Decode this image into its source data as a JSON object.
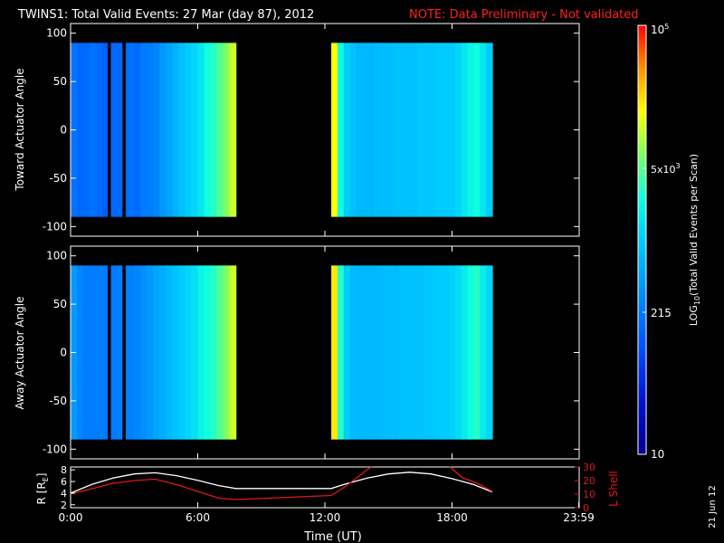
{
  "header": {
    "title": "TWINS1: Total Valid Events: 27 Mar (day  87), 2012",
    "note": "NOTE: Data Preliminary - Not validated"
  },
  "footer": {
    "xlabel": "Time (UT)",
    "date_stamp": "21 Jun 12"
  },
  "colorbar": {
    "label": "LOG10(Total Valid Events per Scan)",
    "label_main": "LOG",
    "label_sub": "10",
    "label_rest": "(Total Valid Events per Scan)",
    "tick_top": "10",
    "tick_top_exp": "5",
    "tick_5e3": "5x10",
    "tick_5e3_exp": "3",
    "tick_215": "215",
    "tick_10": "10"
  },
  "colors": {
    "background": "#000000",
    "axis": "#ffffff",
    "note": "#ff2020",
    "r_line": "#ffffff",
    "l_shell_line": "#e01818"
  },
  "chart_data": [
    {
      "type": "heatmap",
      "panel": "toward",
      "ylabel": "Toward Actuator Angle",
      "yticks": [
        "100",
        "50",
        "0",
        "-50",
        "-100"
      ],
      "ylim": [
        -110,
        110
      ],
      "xlim": [
        0,
        24
      ],
      "data_angle_range": [
        -90,
        90
      ],
      "scale": "log10",
      "value_range": [
        10,
        100000
      ],
      "blocks": [
        {
          "start_hr": 0.0,
          "end_hr": 7.8,
          "columns": [
            0.32,
            0.3,
            0.3,
            0.32,
            0.3,
            0.28,
            0.3,
            0.3,
            0.3,
            0.32,
            0.3,
            0.34,
            0.34,
            0.36,
            0.4,
            0.42,
            0.45,
            0.48,
            0.5,
            0.52,
            0.55,
            0.6,
            0.62,
            0.66,
            0.7,
            0.76
          ]
        },
        {
          "start_hr": 12.3,
          "end_hr": 19.9,
          "columns": [
            0.8,
            0.6,
            0.5,
            0.48,
            0.46,
            0.46,
            0.46,
            0.47,
            0.47,
            0.47,
            0.48,
            0.48,
            0.48,
            0.48,
            0.49,
            0.49,
            0.49,
            0.5,
            0.5,
            0.5,
            0.52,
            0.55,
            0.58,
            0.6,
            0.55,
            0.5
          ]
        }
      ],
      "gaps_hr": [
        [
          1.75,
          1.9
        ],
        [
          2.45,
          2.6
        ]
      ]
    },
    {
      "type": "heatmap",
      "panel": "away",
      "ylabel": "Away Actuator Angle",
      "yticks": [
        "100",
        "50",
        "0",
        "-50",
        "-100"
      ],
      "ylim": [
        -110,
        110
      ],
      "xlim": [
        0,
        24
      ],
      "data_angle_range": [
        -90,
        90
      ],
      "scale": "log10",
      "value_range": [
        10,
        100000
      ],
      "blocks": [
        {
          "start_hr": 0.0,
          "end_hr": 7.8,
          "columns": [
            0.4,
            0.36,
            0.34,
            0.34,
            0.34,
            0.34,
            0.34,
            0.34,
            0.34,
            0.35,
            0.36,
            0.38,
            0.4,
            0.42,
            0.44,
            0.46,
            0.48,
            0.5,
            0.52,
            0.54,
            0.58,
            0.6,
            0.62,
            0.66,
            0.7,
            0.76
          ]
        },
        {
          "start_hr": 12.3,
          "end_hr": 19.9,
          "columns": [
            0.82,
            0.62,
            0.5,
            0.47,
            0.46,
            0.46,
            0.46,
            0.46,
            0.47,
            0.47,
            0.47,
            0.48,
            0.48,
            0.48,
            0.48,
            0.49,
            0.49,
            0.5,
            0.5,
            0.51,
            0.53,
            0.56,
            0.6,
            0.62,
            0.56,
            0.52
          ]
        }
      ],
      "gaps_hr": [
        [
          1.75,
          1.9
        ],
        [
          2.45,
          2.6
        ]
      ]
    },
    {
      "type": "line",
      "panel": "orbit",
      "ylabel": "R [R",
      "ylabel_sub": "E",
      "ylabel_end": "]",
      "y2label": "L Shell",
      "xlabel": "Time (UT)",
      "xticks": [
        "0:00",
        "6:00",
        "12:00",
        "18:00",
        "23:59"
      ],
      "yticks": [
        "8",
        "6",
        "4",
        "2"
      ],
      "y2ticks": [
        "30",
        "20",
        "10",
        "0"
      ],
      "ylim": [
        1.5,
        8.5
      ],
      "y2lim": [
        0,
        30
      ],
      "series": [
        {
          "axis": "left",
          "points": [
            [
              0,
              4.0
            ],
            [
              1,
              5.5
            ],
            [
              2,
              6.6
            ],
            [
              3,
              7.3
            ],
            [
              4,
              7.5
            ],
            [
              5,
              7.0
            ],
            [
              6,
              6.2
            ],
            [
              7,
              5.3
            ],
            [
              7.8,
              4.8
            ],
            [
              12.3,
              4.8
            ],
            [
              13,
              5.6
            ],
            [
              14,
              6.6
            ],
            [
              15,
              7.3
            ],
            [
              16,
              7.6
            ],
            [
              17,
              7.3
            ],
            [
              18,
              6.5
            ],
            [
              19,
              5.5
            ],
            [
              19.9,
              4.2
            ]
          ]
        },
        {
          "axis": "right",
          "points": [
            [
              0,
              10
            ],
            [
              1,
              14
            ],
            [
              2,
              18
            ],
            [
              3,
              20
            ],
            [
              4,
              21
            ],
            [
              5,
              17
            ],
            [
              6,
              12
            ],
            [
              7,
              7
            ],
            [
              7.8,
              6
            ],
            [
              12.3,
              9
            ],
            [
              13,
              16
            ],
            [
              14,
              28
            ],
            [
              14.2,
              30
            ]
          ]
        },
        {
          "axis": "right",
          "points": [
            [
              17.9,
              30
            ],
            [
              18.5,
              22
            ],
            [
              19.2,
              18
            ],
            [
              19.9,
              12
            ]
          ]
        }
      ]
    }
  ]
}
